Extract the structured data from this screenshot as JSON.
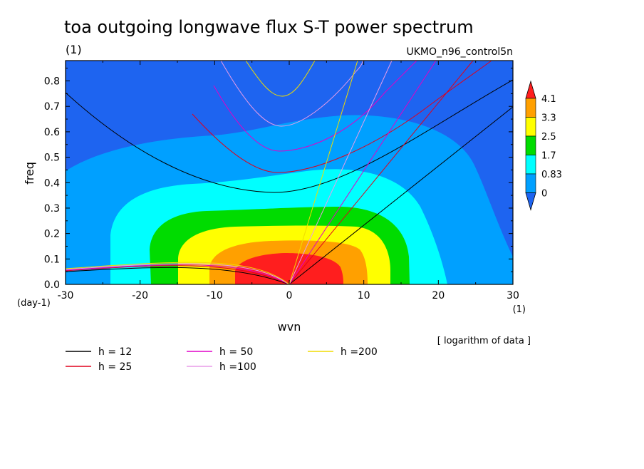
{
  "chart_data": {
    "type": "heatmap",
    "title": "toa outgoing longwave flux S-T power spectrum",
    "subtitle_left": "(1)",
    "subtitle_right": "UKMO_n96_control5n",
    "xlabel": "wvn",
    "ylabel": "freq",
    "x_unit": "(1)",
    "y_unit": "(day-1)",
    "xlim": [
      -30,
      30
    ],
    "ylim": [
      0,
      0.88
    ],
    "x_ticks": [
      -30,
      -20,
      -10,
      0,
      10,
      20,
      30
    ],
    "y_ticks": [
      0.0,
      0.1,
      0.2,
      0.3,
      0.4,
      0.5,
      0.6,
      0.7,
      0.8
    ],
    "note": "[ logarithm of data ]",
    "colorbar": {
      "levels": [
        "0",
        "0.83",
        "1.7",
        "2.5",
        "3.3",
        "4.1"
      ],
      "colors": [
        "#1e64f0",
        "#00a0ff",
        "#00ffff",
        "#00dc00",
        "#ffff00",
        "#ffa000",
        "#ff1e1e"
      ]
    },
    "dispersion_curves": [
      {
        "label": "h = 12",
        "color": "#000000"
      },
      {
        "label": "h = 25",
        "color": "#e0001c"
      },
      {
        "label": "h = 50",
        "color": "#e000c8"
      },
      {
        "label": "h =100",
        "color": "#e89ce8"
      },
      {
        "label": "h =200",
        "color": "#f0dc00"
      }
    ]
  }
}
